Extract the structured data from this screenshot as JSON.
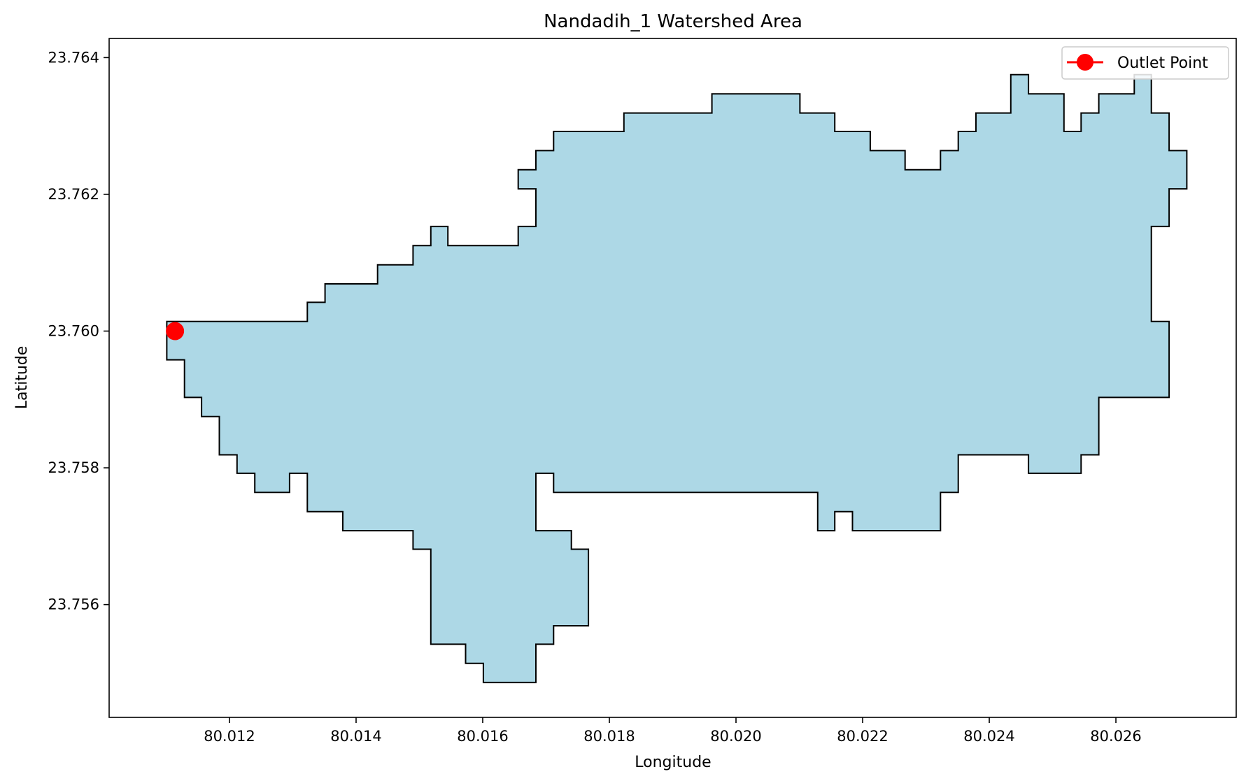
{
  "chart_data": {
    "type": "map",
    "title": "Nandadih_1 Watershed Area",
    "xlabel": "Longitude",
    "ylabel": "Latitude",
    "xlim": [
      80.0101,
      80.0279
    ],
    "ylim": [
      23.75435,
      23.76428
    ],
    "xticks": [
      {
        "value": 80.012,
        "label": "80.012"
      },
      {
        "value": 80.014,
        "label": "80.014"
      },
      {
        "value": 80.016,
        "label": "80.016"
      },
      {
        "value": 80.018,
        "label": "80.018"
      },
      {
        "value": 80.02,
        "label": "80.020"
      },
      {
        "value": 80.022,
        "label": "80.022"
      },
      {
        "value": 80.024,
        "label": "80.024"
      },
      {
        "value": 80.026,
        "label": "80.026"
      }
    ],
    "yticks": [
      {
        "value": 23.756,
        "label": "23.756"
      },
      {
        "value": 23.758,
        "label": "23.758"
      },
      {
        "value": 23.76,
        "label": "23.760"
      },
      {
        "value": 23.762,
        "label": "23.762"
      },
      {
        "value": 23.764,
        "label": "23.764"
      }
    ],
    "grid": false,
    "legend": {
      "placement": "top-right",
      "entries": [
        {
          "label": "Outlet Point",
          "color": "#ff0000",
          "marker": "circle"
        }
      ]
    },
    "watershed": {
      "fill_color": "#add8e6",
      "edge_color": "#000000",
      "boundary": [
        [
          80.01101,
          23.76014
        ],
        [
          80.01323,
          23.76014
        ],
        [
          80.01323,
          23.76042
        ],
        [
          80.01351,
          23.76042
        ],
        [
          80.01351,
          23.76069
        ],
        [
          80.01434,
          23.76069
        ],
        [
          80.01434,
          23.76097
        ],
        [
          80.0149,
          23.76097
        ],
        [
          80.0149,
          23.76125
        ],
        [
          80.01518,
          23.76125
        ],
        [
          80.01518,
          23.76153
        ],
        [
          80.01545,
          23.76153
        ],
        [
          80.01545,
          23.76125
        ],
        [
          80.01656,
          23.76125
        ],
        [
          80.01656,
          23.76153
        ],
        [
          80.01684,
          23.76153
        ],
        [
          80.01684,
          23.76208
        ],
        [
          80.01656,
          23.76208
        ],
        [
          80.01656,
          23.76236
        ],
        [
          80.01684,
          23.76236
        ],
        [
          80.01684,
          23.76264
        ],
        [
          80.01712,
          23.76264
        ],
        [
          80.01712,
          23.76292
        ],
        [
          80.01823,
          23.76292
        ],
        [
          80.01823,
          23.76319
        ],
        [
          80.01962,
          23.76319
        ],
        [
          80.01962,
          23.76347
        ],
        [
          80.02101,
          23.76347
        ],
        [
          80.02101,
          23.76319
        ],
        [
          80.02156,
          23.76319
        ],
        [
          80.02156,
          23.76292
        ],
        [
          80.02212,
          23.76292
        ],
        [
          80.02212,
          23.76264
        ],
        [
          80.02267,
          23.76264
        ],
        [
          80.02267,
          23.76236
        ],
        [
          80.02323,
          23.76236
        ],
        [
          80.02323,
          23.76264
        ],
        [
          80.02351,
          23.76264
        ],
        [
          80.02351,
          23.76292
        ],
        [
          80.02379,
          23.76292
        ],
        [
          80.02379,
          23.76319
        ],
        [
          80.02434,
          23.76319
        ],
        [
          80.02434,
          23.76375
        ],
        [
          80.02462,
          23.76375
        ],
        [
          80.02462,
          23.76347
        ],
        [
          80.02518,
          23.76347
        ],
        [
          80.02518,
          23.76292
        ],
        [
          80.02545,
          23.76292
        ],
        [
          80.02545,
          23.76319
        ],
        [
          80.02573,
          23.76319
        ],
        [
          80.02573,
          23.76347
        ],
        [
          80.02629,
          23.76347
        ],
        [
          80.02629,
          23.76375
        ],
        [
          80.02656,
          23.76375
        ],
        [
          80.02656,
          23.76319
        ],
        [
          80.02684,
          23.76319
        ],
        [
          80.02684,
          23.76264
        ],
        [
          80.02712,
          23.76264
        ],
        [
          80.02712,
          23.76208
        ],
        [
          80.02684,
          23.76208
        ],
        [
          80.02684,
          23.76153
        ],
        [
          80.02656,
          23.76153
        ],
        [
          80.02656,
          23.76014
        ],
        [
          80.02684,
          23.76014
        ],
        [
          80.02684,
          23.75903
        ],
        [
          80.02573,
          23.75903
        ],
        [
          80.02573,
          23.75819
        ],
        [
          80.02545,
          23.75819
        ],
        [
          80.02545,
          23.75792
        ],
        [
          80.02462,
          23.75792
        ],
        [
          80.02462,
          23.75819
        ],
        [
          80.02351,
          23.75819
        ],
        [
          80.02351,
          23.75764
        ],
        [
          80.02323,
          23.75764
        ],
        [
          80.02323,
          23.75708
        ],
        [
          80.02184,
          23.75708
        ],
        [
          80.02184,
          23.75736
        ],
        [
          80.02156,
          23.75736
        ],
        [
          80.02156,
          23.75708
        ],
        [
          80.02129,
          23.75708
        ],
        [
          80.02129,
          23.75764
        ],
        [
          80.01712,
          23.75764
        ],
        [
          80.01712,
          23.75792
        ],
        [
          80.01684,
          23.75792
        ],
        [
          80.01684,
          23.75708
        ],
        [
          80.0174,
          23.75708
        ],
        [
          80.0174,
          23.75681
        ],
        [
          80.01767,
          23.75681
        ],
        [
          80.01767,
          23.75569
        ],
        [
          80.01712,
          23.75569
        ],
        [
          80.01712,
          23.75542
        ],
        [
          80.01684,
          23.75542
        ],
        [
          80.01684,
          23.75486
        ],
        [
          80.01601,
          23.75486
        ],
        [
          80.01601,
          23.75514
        ],
        [
          80.01573,
          23.75514
        ],
        [
          80.01573,
          23.75542
        ],
        [
          80.01518,
          23.75542
        ],
        [
          80.01518,
          23.75681
        ],
        [
          80.0149,
          23.75681
        ],
        [
          80.0149,
          23.75708
        ],
        [
          80.01379,
          23.75708
        ],
        [
          80.01379,
          23.75736
        ],
        [
          80.01323,
          23.75736
        ],
        [
          80.01323,
          23.75792
        ],
        [
          80.01295,
          23.75792
        ],
        [
          80.01295,
          23.75764
        ],
        [
          80.0124,
          23.75764
        ],
        [
          80.0124,
          23.75792
        ],
        [
          80.01212,
          23.75792
        ],
        [
          80.01212,
          23.75819
        ],
        [
          80.01184,
          23.75819
        ],
        [
          80.01184,
          23.75875
        ],
        [
          80.01156,
          23.75875
        ],
        [
          80.01156,
          23.75903
        ],
        [
          80.01129,
          23.75903
        ],
        [
          80.01129,
          23.75958
        ],
        [
          80.01101,
          23.75958
        ]
      ]
    },
    "outlet_point": {
      "label": "Outlet Point",
      "lon": 80.01114,
      "lat": 23.76,
      "color": "#ff0000"
    }
  }
}
